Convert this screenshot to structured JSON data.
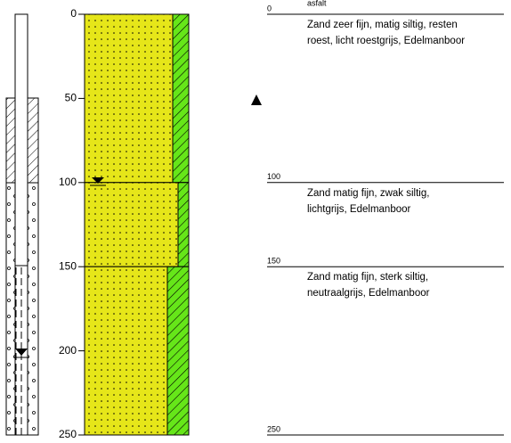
{
  "axis": {
    "ticks": [
      0,
      50,
      100,
      150,
      200,
      250
    ]
  },
  "boundaries": [
    0,
    100,
    150,
    250
  ],
  "surface_note": "asfalt",
  "layers": [
    {
      "description": [
        "Zand zeer fijn, matig siltig, resten",
        "roest, licht roestgrijs, Edelmanboor"
      ]
    },
    {
      "description": [
        "Zand matig fijn, zwak siltig,",
        "lichtgrijs,  Edelmanboor"
      ]
    },
    {
      "description": [
        "Zand matig fijn, sterk siltig,",
        "neutraalgrijs,  Edelmanboor"
      ]
    }
  ]
}
